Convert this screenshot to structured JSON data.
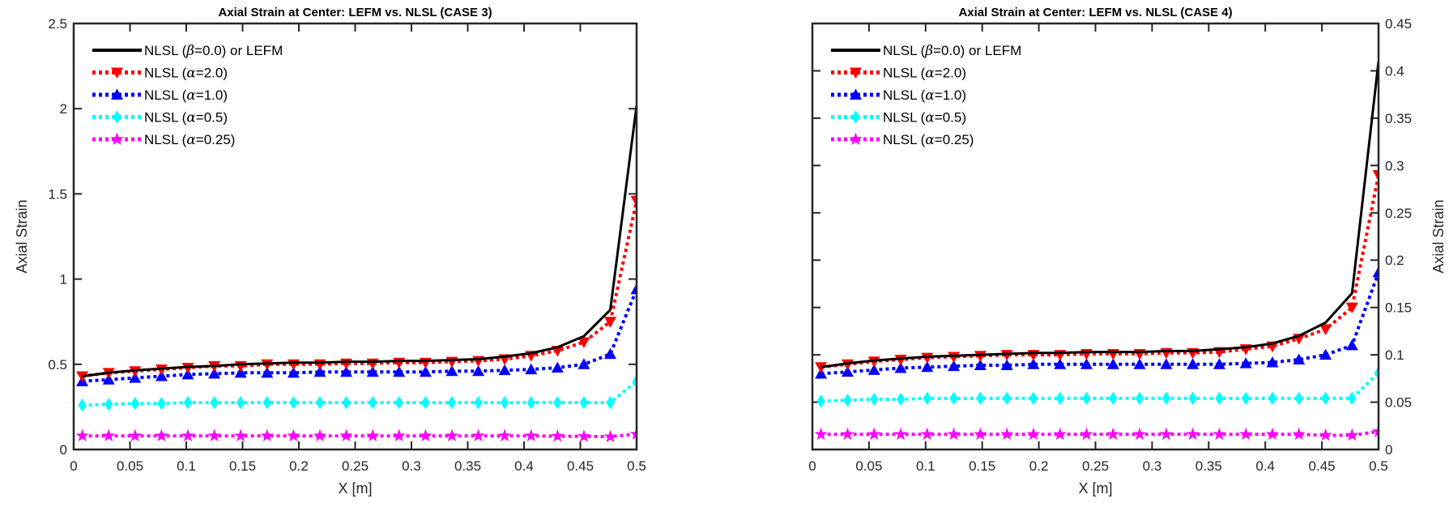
{
  "chart_data": [
    {
      "type": "line",
      "title": "Axial Strain at Center: LEFM vs. NLSL (CASE 3)",
      "xlabel": "X [m]",
      "ylabel": "Axial Strain",
      "ylabel_side": "left",
      "xlim": [
        0,
        0.5
      ],
      "ylim": [
        0,
        2.5
      ],
      "xticks": [
        "0",
        "0.05",
        "0.1",
        "0.15",
        "0.2",
        "0.25",
        "0.3",
        "0.35",
        "0.4",
        "0.45",
        "0.5"
      ],
      "yticks": [
        "0",
        "0.5",
        "1",
        "1.5",
        "2",
        "2.5"
      ],
      "ytick_values": [
        0,
        0.5,
        1,
        1.5,
        2,
        2.5
      ],
      "grid": false,
      "legend_position": "top-left",
      "x": [
        0.0076,
        0.0311,
        0.0545,
        0.078,
        0.1014,
        0.1249,
        0.1483,
        0.1718,
        0.1952,
        0.2187,
        0.2421,
        0.2656,
        0.289,
        0.3125,
        0.3359,
        0.3594,
        0.3828,
        0.4063,
        0.4297,
        0.4532,
        0.4766,
        0.5
      ],
      "series": [
        {
          "name": "NLSL (β=0.0) or LEFM",
          "color": "#000000",
          "marker": "none",
          "values": [
            0.43,
            0.45,
            0.465,
            0.475,
            0.485,
            0.49,
            0.5,
            0.505,
            0.51,
            0.51,
            0.515,
            0.515,
            0.52,
            0.52,
            0.525,
            0.53,
            0.545,
            0.565,
            0.6,
            0.665,
            0.82,
            2.02
          ]
        },
        {
          "name": "NLSL (α=2.0)",
          "color": "#ff0000",
          "marker": "triangle-down",
          "values": [
            0.43,
            0.45,
            0.46,
            0.47,
            0.48,
            0.49,
            0.49,
            0.5,
            0.5,
            0.5,
            0.505,
            0.505,
            0.51,
            0.51,
            0.515,
            0.52,
            0.53,
            0.55,
            0.58,
            0.63,
            0.75,
            1.46
          ]
        },
        {
          "name": "NLSL (α=1.0)",
          "color": "#0000ff",
          "marker": "triangle-up",
          "values": [
            0.4,
            0.41,
            0.42,
            0.43,
            0.44,
            0.445,
            0.45,
            0.45,
            0.45,
            0.455,
            0.455,
            0.455,
            0.455,
            0.455,
            0.46,
            0.46,
            0.465,
            0.47,
            0.48,
            0.5,
            0.56,
            0.94
          ]
        },
        {
          "name": "NLSL (α=0.5)",
          "color": "#00ffff",
          "marker": "diamond",
          "values": [
            0.26,
            0.265,
            0.27,
            0.27,
            0.275,
            0.275,
            0.275,
            0.275,
            0.275,
            0.275,
            0.275,
            0.275,
            0.275,
            0.275,
            0.275,
            0.275,
            0.275,
            0.275,
            0.275,
            0.275,
            0.275,
            0.4
          ]
        },
        {
          "name": "NLSL (α=0.25)",
          "color": "#ff00ff",
          "marker": "star",
          "values": [
            0.08,
            0.08,
            0.08,
            0.08,
            0.08,
            0.08,
            0.08,
            0.08,
            0.08,
            0.08,
            0.08,
            0.08,
            0.08,
            0.08,
            0.08,
            0.08,
            0.08,
            0.08,
            0.078,
            0.077,
            0.075,
            0.09
          ]
        }
      ],
      "legend_labels": [
        {
          "pre": "NLSL (",
          "sym": "β",
          "post": "=0.0) or LEFM"
        },
        {
          "pre": "NLSL (",
          "sym": "α",
          "post": "=2.0)"
        },
        {
          "pre": "NLSL (",
          "sym": "α",
          "post": "=1.0)"
        },
        {
          "pre": "NLSL (",
          "sym": "α",
          "post": "=0.5)"
        },
        {
          "pre": "NLSL (",
          "sym": "α",
          "post": "=0.25)"
        }
      ]
    },
    {
      "type": "line",
      "title": "Axial Strain at Center: LEFM vs. NLSL (CASE 4)",
      "xlabel": "X [m]",
      "ylabel": "Axial Strain",
      "ylabel_side": "right",
      "xlim": [
        0,
        0.5
      ],
      "ylim": [
        0,
        0.45
      ],
      "xticks": [
        "0",
        "0.05",
        "0.1",
        "0.15",
        "0.2",
        "0.25",
        "0.3",
        "0.35",
        "0.4",
        "0.45",
        "0.5"
      ],
      "yticks": [
        "0",
        "0.05",
        "0.1",
        "0.15",
        "0.2",
        "0.25",
        "0.3",
        "0.35",
        "0.4",
        "0.45"
      ],
      "ytick_values": [
        0,
        0.05,
        0.1,
        0.15,
        0.2,
        0.25,
        0.3,
        0.35,
        0.4,
        0.45
      ],
      "grid": false,
      "legend_position": "top-left",
      "x": [
        0.0076,
        0.0311,
        0.0545,
        0.078,
        0.1014,
        0.1249,
        0.1483,
        0.1718,
        0.1952,
        0.2187,
        0.2421,
        0.2656,
        0.289,
        0.3125,
        0.3359,
        0.3594,
        0.3828,
        0.4063,
        0.4297,
        0.4532,
        0.4766,
        0.5
      ],
      "series": [
        {
          "name": "NLSL (β=0.0) or LEFM",
          "color": "#000000",
          "marker": "none",
          "values": [
            0.087,
            0.091,
            0.094,
            0.096,
            0.098,
            0.099,
            0.1,
            0.101,
            0.102,
            0.102,
            0.103,
            0.103,
            0.103,
            0.104,
            0.104,
            0.106,
            0.108,
            0.112,
            0.12,
            0.134,
            0.165,
            0.41
          ]
        },
        {
          "name": "NLSL (α=2.0)",
          "color": "#ff0000",
          "marker": "triangle-down",
          "values": [
            0.087,
            0.09,
            0.093,
            0.095,
            0.097,
            0.098,
            0.099,
            0.1,
            0.1,
            0.1,
            0.101,
            0.101,
            0.101,
            0.102,
            0.102,
            0.103,
            0.106,
            0.109,
            0.117,
            0.127,
            0.15,
            0.29
          ]
        },
        {
          "name": "NLSL (α=1.0)",
          "color": "#0000ff",
          "marker": "triangle-up",
          "values": [
            0.08,
            0.082,
            0.084,
            0.086,
            0.087,
            0.088,
            0.089,
            0.089,
            0.09,
            0.09,
            0.09,
            0.09,
            0.09,
            0.09,
            0.09,
            0.09,
            0.091,
            0.092,
            0.095,
            0.1,
            0.11,
            0.187
          ]
        },
        {
          "name": "NLSL (α=0.5)",
          "color": "#00ffff",
          "marker": "diamond",
          "values": [
            0.051,
            0.052,
            0.053,
            0.053,
            0.054,
            0.054,
            0.054,
            0.054,
            0.054,
            0.054,
            0.054,
            0.054,
            0.054,
            0.054,
            0.054,
            0.054,
            0.054,
            0.054,
            0.054,
            0.054,
            0.054,
            0.081
          ]
        },
        {
          "name": "NLSL (α=0.25)",
          "color": "#ff00ff",
          "marker": "star",
          "values": [
            0.016,
            0.016,
            0.016,
            0.016,
            0.016,
            0.016,
            0.016,
            0.016,
            0.016,
            0.016,
            0.016,
            0.016,
            0.016,
            0.016,
            0.016,
            0.016,
            0.016,
            0.016,
            0.016,
            0.015,
            0.015,
            0.019
          ]
        }
      ],
      "legend_labels": [
        {
          "pre": "NLSL (",
          "sym": "β",
          "post": "=0.0) or LEFM"
        },
        {
          "pre": "NLSL (",
          "sym": "α",
          "post": "=2.0)"
        },
        {
          "pre": "NLSL (",
          "sym": "α",
          "post": "=1.0)"
        },
        {
          "pre": "NLSL (",
          "sym": "α",
          "post": "=0.5)"
        },
        {
          "pre": "NLSL (",
          "sym": "α",
          "post": "=0.25)"
        }
      ]
    }
  ]
}
